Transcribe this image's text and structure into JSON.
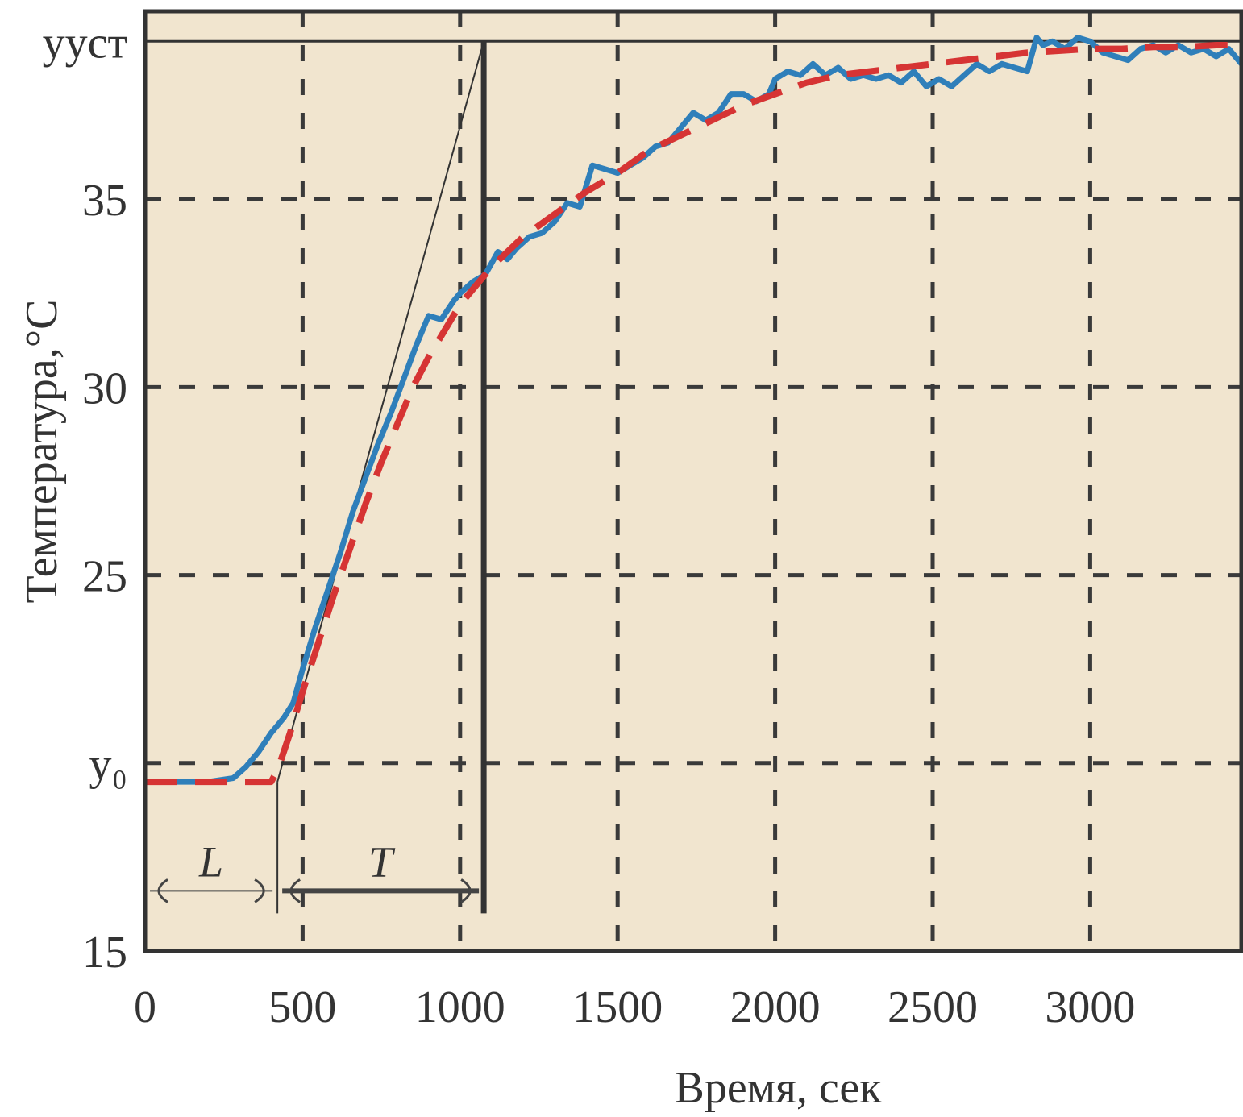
{
  "chart_data": {
    "type": "line",
    "xlabel": "Время, сек",
    "ylabel": "Температура,°C",
    "xlim": [
      0,
      3480
    ],
    "ylim": [
      15,
      40
    ],
    "x_ticks": [
      0,
      500,
      1000,
      1500,
      2000,
      2500,
      3000
    ],
    "y_ticks": [
      {
        "value": 15,
        "label": "15"
      },
      {
        "value": 20,
        "label": "y₀"
      },
      {
        "value": 25,
        "label": "25"
      },
      {
        "value": 30,
        "label": "30"
      },
      {
        "value": 35,
        "label": "35"
      },
      {
        "value": 39.2,
        "label": "yуст"
      }
    ],
    "grid": true,
    "background": "#f1e5cf",
    "series": [
      {
        "color": "#2f7fba",
        "style": "solid",
        "x": [
          0,
          100,
          200,
          280,
          320,
          360,
          400,
          440,
          470,
          500,
          540,
          580,
          620,
          660,
          700,
          740,
          780,
          820,
          860,
          900,
          940,
          980,
          1000,
          1040,
          1080,
          1120,
          1150,
          1180,
          1220,
          1260,
          1300,
          1340,
          1380,
          1420,
          1460,
          1500,
          1540,
          1580,
          1620,
          1660,
          1700,
          1740,
          1780,
          1820,
          1860,
          1900,
          1940,
          1980,
          2000,
          2040,
          2080,
          2120,
          2160,
          2200,
          2240,
          2280,
          2320,
          2360,
          2400,
          2440,
          2480,
          2520,
          2560,
          2600,
          2640,
          2680,
          2720,
          2760,
          2800,
          2830,
          2850,
          2880,
          2920,
          2960,
          3000,
          3040,
          3080,
          3120,
          3160,
          3200,
          3240,
          3280,
          3320,
          3360,
          3400,
          3440,
          3480
        ],
        "values": [
          19.5,
          19.5,
          19.5,
          19.6,
          19.9,
          20.3,
          20.8,
          21.2,
          21.6,
          22.5,
          23.6,
          24.6,
          25.6,
          26.7,
          27.6,
          28.5,
          29.3,
          30.2,
          31.1,
          31.9,
          31.8,
          32.3,
          32.5,
          32.8,
          33.0,
          33.6,
          33.4,
          33.7,
          34.0,
          34.1,
          34.4,
          34.9,
          34.8,
          35.9,
          35.8,
          35.7,
          35.9,
          36.1,
          36.4,
          36.5,
          36.9,
          37.3,
          37.1,
          37.3,
          37.8,
          37.8,
          37.6,
          37.8,
          38.2,
          38.4,
          38.3,
          38.6,
          38.3,
          38.5,
          38.2,
          38.3,
          38.2,
          38.3,
          38.1,
          38.4,
          38.0,
          38.2,
          38.0,
          38.3,
          38.6,
          38.4,
          38.6,
          38.5,
          38.4,
          39.3,
          39.1,
          39.2,
          39.0,
          39.3,
          39.2,
          38.9,
          38.8,
          38.7,
          39.0,
          39.1,
          38.9,
          39.1,
          38.9,
          39.0,
          38.8,
          39.0,
          38.6
        ]
      },
      {
        "color": "#d63434",
        "style": "dashed",
        "x": [
          0,
          400,
          420,
          440,
          460,
          500,
          550,
          600,
          650,
          700,
          750,
          800,
          850,
          900,
          950,
          1000,
          1050,
          1100,
          1200,
          1300,
          1400,
          1500,
          1600,
          1700,
          1800,
          1900,
          2000,
          2100,
          2200,
          2300,
          2400,
          2500,
          2600,
          2700,
          2800,
          2900,
          3000,
          3100,
          3200,
          3300,
          3400,
          3480
        ],
        "values": [
          19.5,
          19.5,
          19.8,
          20.3,
          20.8,
          21.9,
          23.2,
          24.5,
          25.7,
          26.9,
          28.0,
          29.0,
          30.0,
          30.8,
          31.5,
          32.2,
          32.7,
          33.2,
          34.0,
          34.6,
          35.2,
          35.7,
          36.3,
          36.7,
          37.1,
          37.5,
          37.8,
          38.1,
          38.3,
          38.4,
          38.5,
          38.6,
          38.7,
          38.8,
          38.9,
          38.95,
          39.0,
          39.0,
          39.05,
          39.05,
          39.1,
          39.1
        ]
      }
    ],
    "annotations": {
      "tangent_line": {
        "x": [
          420,
          1075
        ],
        "y": [
          19.5,
          39.2
        ]
      },
      "vertical_T_end": {
        "x": 1075,
        "y": [
          16.0,
          39.2
        ]
      },
      "vertical_L_end": {
        "x": 420,
        "y": [
          16.0,
          19.5
        ]
      },
      "L_label": "L",
      "T_label": "T",
      "L_arrow": {
        "x": [
          0,
          420
        ],
        "y": 16.6
      },
      "T_arrow": {
        "x": [
          420,
          1075
        ],
        "y": 16.6
      },
      "steady_line_y": 39.2
    }
  }
}
